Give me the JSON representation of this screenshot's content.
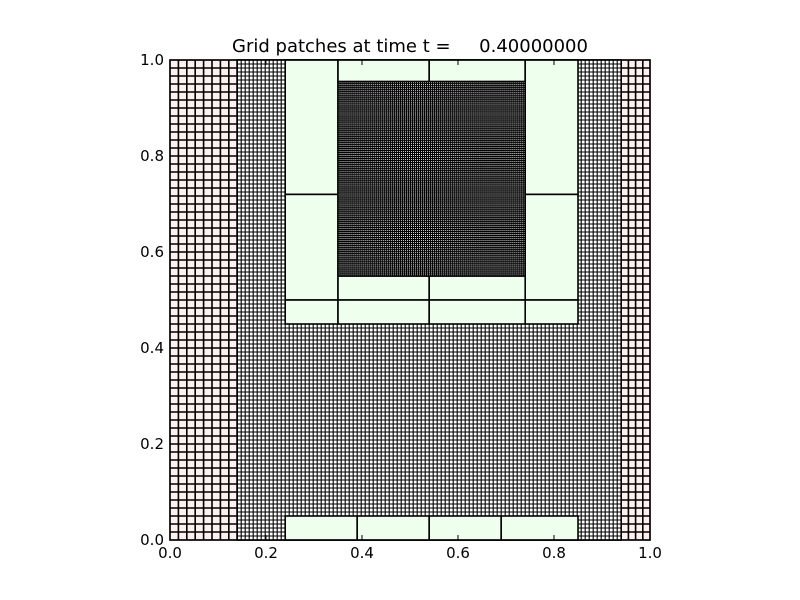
{
  "chart_data": {
    "type": "grid-patches",
    "title": "Grid patches at time t =     0.40000000",
    "xlim": [
      0.0,
      1.0
    ],
    "ylim": [
      0.0,
      1.0
    ],
    "xticks": [
      "0.0",
      "0.2",
      "0.4",
      "0.6",
      "0.8",
      "1.0"
    ],
    "yticks": [
      "0.0",
      "0.2",
      "0.4",
      "0.6",
      "0.8",
      "1.0"
    ],
    "levels": [
      {
        "level": 1,
        "fill": "#fff0f0",
        "dx": 0.0167,
        "patches": [
          {
            "x": [
              0.0,
              0.14
            ],
            "y": [
              0.0,
              1.0
            ]
          },
          {
            "x": [
              0.14,
              0.94
            ],
            "y": [
              0.0,
              1.0
            ]
          },
          {
            "x": [
              0.94,
              1.0
            ],
            "y": [
              0.0,
              1.0
            ]
          }
        ]
      },
      {
        "level": 2,
        "fill": "#ffffff",
        "dx": 0.0083,
        "patches": [
          {
            "x": [
              0.14,
              0.94
            ],
            "y": [
              0.0,
              1.0
            ]
          }
        ]
      },
      {
        "level": 3,
        "fill": "#eeffee",
        "dx": 0.0042,
        "patches": [
          {
            "x": [
              0.24,
              0.35
            ],
            "y": [
              0.72,
              1.0
            ]
          },
          {
            "x": [
              0.24,
              0.35
            ],
            "y": [
              0.5,
              0.72
            ]
          },
          {
            "x": [
              0.24,
              0.35
            ],
            "y": [
              0.45,
              0.5
            ]
          },
          {
            "x": [
              0.35,
              0.54
            ],
            "y": [
              0.955,
              1.0
            ]
          },
          {
            "x": [
              0.54,
              0.74
            ],
            "y": [
              0.955,
              1.0
            ]
          },
          {
            "x": [
              0.74,
              0.85
            ],
            "y": [
              0.72,
              1.0
            ]
          },
          {
            "x": [
              0.74,
              0.85
            ],
            "y": [
              0.5,
              0.72
            ]
          },
          {
            "x": [
              0.74,
              0.85
            ],
            "y": [
              0.45,
              0.5
            ]
          },
          {
            "x": [
              0.35,
              0.54
            ],
            "y": [
              0.5,
              0.55
            ]
          },
          {
            "x": [
              0.54,
              0.74
            ],
            "y": [
              0.5,
              0.55
            ]
          },
          {
            "x": [
              0.35,
              0.54
            ],
            "y": [
              0.45,
              0.5
            ]
          },
          {
            "x": [
              0.54,
              0.74
            ],
            "y": [
              0.45,
              0.5
            ]
          },
          {
            "x": [
              0.24,
              0.39
            ],
            "y": [
              0.0,
              0.05
            ]
          },
          {
            "x": [
              0.39,
              0.54
            ],
            "y": [
              0.0,
              0.05
            ]
          },
          {
            "x": [
              0.54,
              0.69
            ],
            "y": [
              0.0,
              0.05
            ]
          },
          {
            "x": [
              0.69,
              0.85
            ],
            "y": [
              0.0,
              0.05
            ]
          }
        ]
      },
      {
        "level": 4,
        "fill": "#ffffff",
        "dx": 0.0042,
        "patches": [
          {
            "x": [
              0.35,
              0.74
            ],
            "y": [
              0.55,
              0.955
            ]
          }
        ]
      }
    ]
  }
}
